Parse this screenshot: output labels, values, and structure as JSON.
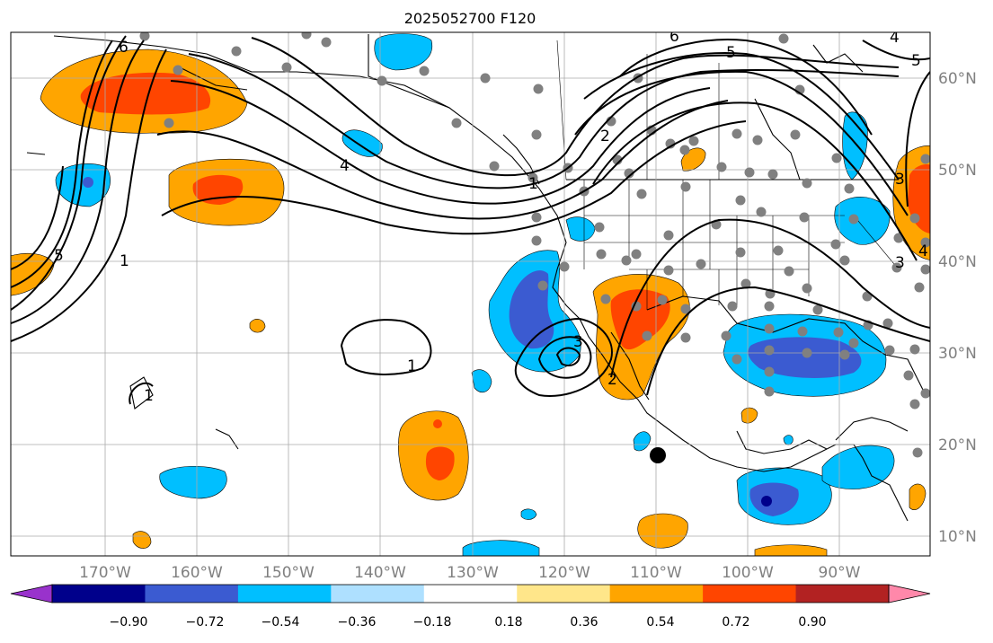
{
  "map": {
    "title": "2025052700 F120",
    "lon_ticks": [
      "170°W",
      "160°W",
      "150°W",
      "140°W",
      "130°W",
      "120°W",
      "110°W",
      "100°W",
      "90°W"
    ],
    "lat_ticks": [
      "60°N",
      "50°N",
      "40°N",
      "30°N",
      "20°N",
      "10°N"
    ],
    "contour_labels": [
      "6",
      "5",
      "4",
      "2",
      "1",
      "1",
      "5",
      "6",
      "5",
      "4",
      "3",
      "2",
      "3",
      "1",
      "1",
      "3",
      "4"
    ],
    "colorbar": {
      "tick_labels": [
        "−0.90",
        "−0.72",
        "−0.54",
        "−0.36",
        "−0.18",
        "0.18",
        "0.36",
        "0.54",
        "0.72",
        "0.90"
      ],
      "colors": [
        "#9932cc",
        "#00008b",
        "#3b5bd1",
        "#00bfff",
        "#aee0ff",
        "#ffffff",
        "#ffe68a",
        "#ffa500",
        "#ff4500",
        "#b22222",
        "#ff88aa"
      ]
    },
    "colors": {
      "grid": "#aaaaaa",
      "coast": "#000000",
      "station": "#808080",
      "tick_label": "#808080"
    }
  }
}
